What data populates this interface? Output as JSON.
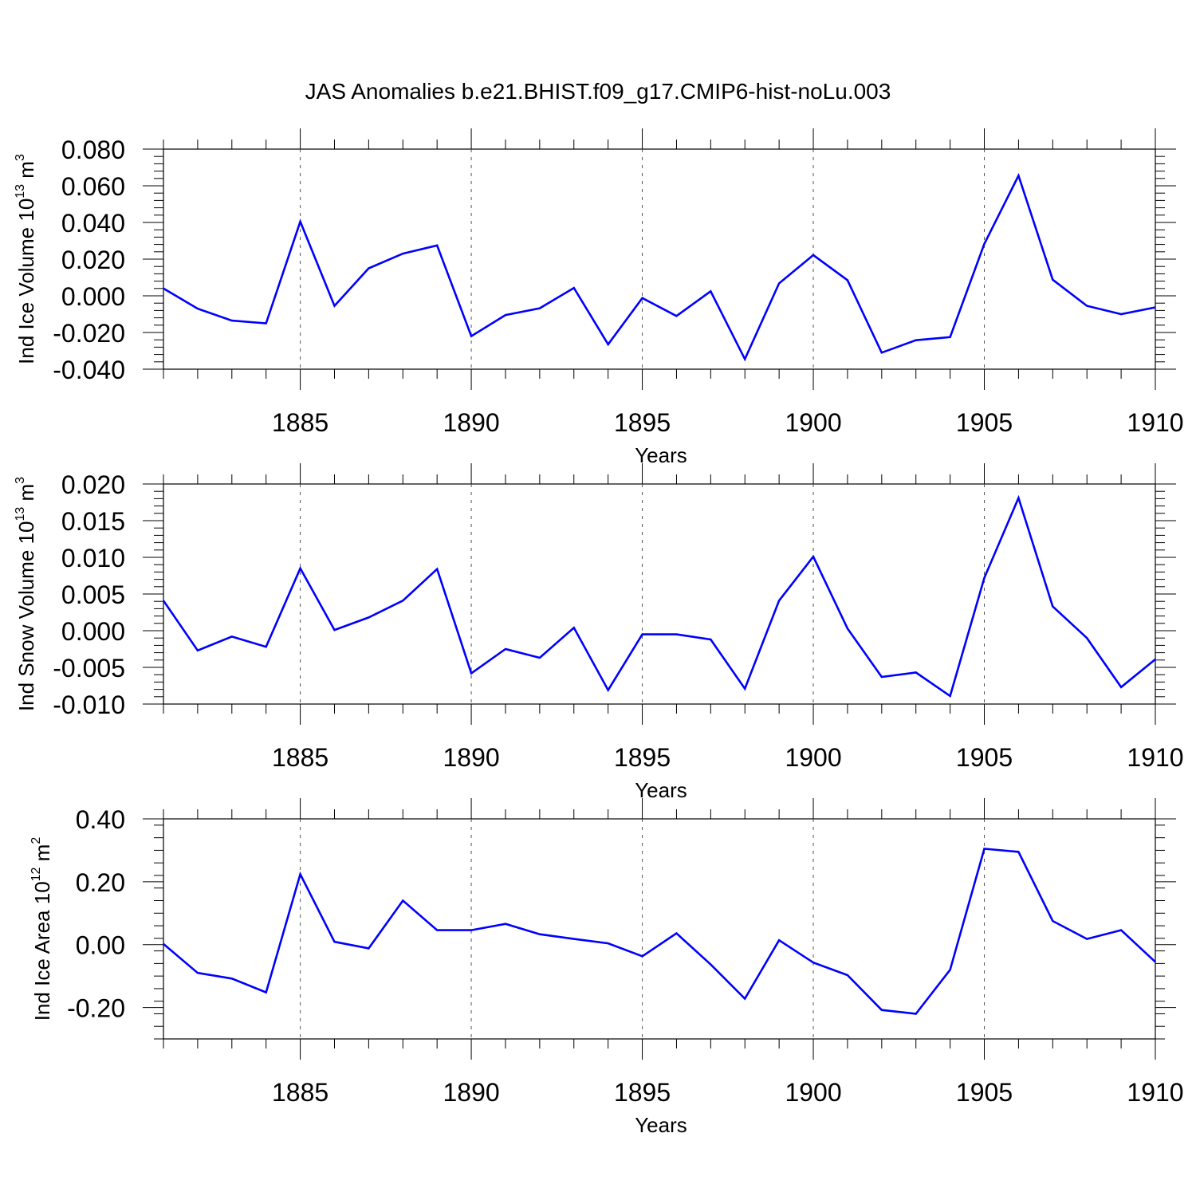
{
  "chart_title": "JAS Anomalies b.e21.BHIST.f09_g17.CMIP6-hist-noLu.003",
  "chart_data": [
    {
      "type": "line",
      "ylabel": {
        "text": "Ind Ice Volume 10",
        "exponent": "13",
        "unit": " m",
        "unit_exponent": "3"
      },
      "xlabel": "Years",
      "xlim": [
        1881,
        1910
      ],
      "ylim": [
        -0.04,
        0.08
      ],
      "x_major_ticks": [
        1885,
        1890,
        1895,
        1900,
        1905,
        1910
      ],
      "y_ticks": [
        -0.04,
        -0.02,
        0.0,
        0.02,
        0.04,
        0.06,
        0.08
      ],
      "y_tick_labels": [
        "-0.040",
        "-0.020",
        "0.000",
        "0.020",
        "0.040",
        "0.060",
        "0.080"
      ],
      "grid": "dashed vertical lines at major x ticks",
      "series_color": "#0000ff",
      "x": [
        1881,
        1882,
        1883,
        1884,
        1885,
        1886,
        1887,
        1888,
        1889,
        1890,
        1891,
        1892,
        1893,
        1894,
        1895,
        1896,
        1897,
        1898,
        1899,
        1900,
        1901,
        1902,
        1903,
        1904,
        1905,
        1906,
        1907,
        1908,
        1909,
        1910
      ],
      "values": [
        0.004,
        -0.007,
        -0.0135,
        -0.015,
        0.0405,
        -0.0055,
        0.015,
        0.023,
        0.0275,
        -0.022,
        -0.0105,
        -0.0068,
        0.0043,
        -0.0265,
        -0.0012,
        -0.011,
        0.0025,
        -0.0345,
        0.0068,
        0.0222,
        0.0085,
        -0.031,
        -0.0242,
        -0.0225,
        0.0283,
        0.0655,
        0.0088,
        -0.0055,
        -0.01,
        -0.0063
      ]
    },
    {
      "type": "line",
      "ylabel": {
        "text": "Ind Snow Volume 10",
        "exponent": "13",
        "unit": " m",
        "unit_exponent": "3"
      },
      "xlabel": "Years",
      "xlim": [
        1881,
        1910
      ],
      "ylim": [
        -0.01,
        0.02
      ],
      "x_major_ticks": [
        1885,
        1890,
        1895,
        1900,
        1905,
        1910
      ],
      "y_ticks": [
        -0.01,
        -0.005,
        0.0,
        0.005,
        0.01,
        0.015,
        0.02
      ],
      "y_tick_labels": [
        "-0.010",
        "-0.005",
        "0.000",
        "0.005",
        "0.010",
        "0.015",
        "0.020"
      ],
      "grid": "dashed vertical lines at major x ticks",
      "series_color": "#0000ff",
      "x": [
        1881,
        1882,
        1883,
        1884,
        1885,
        1886,
        1887,
        1888,
        1889,
        1890,
        1891,
        1892,
        1893,
        1894,
        1895,
        1896,
        1897,
        1898,
        1899,
        1900,
        1901,
        1902,
        1903,
        1904,
        1905,
        1906,
        1907,
        1908,
        1909,
        1910
      ],
      "values": [
        0.0041,
        -0.0027,
        -0.0008,
        -0.0022,
        0.0085,
        0.0001,
        0.0018,
        0.0041,
        0.0084,
        -0.0058,
        -0.0025,
        -0.0037,
        0.0004,
        -0.0081,
        -0.0005,
        -0.0005,
        -0.0012,
        -0.0079,
        0.0041,
        0.0101,
        0.0003,
        -0.0063,
        -0.0057,
        -0.0089,
        0.0072,
        0.0181,
        0.0033,
        -0.001,
        -0.0077,
        -0.0039
      ]
    },
    {
      "type": "line",
      "ylabel": {
        "text": "Ind Ice Area 10",
        "exponent": "12",
        "unit": " m",
        "unit_exponent": "2"
      },
      "xlabel": "Years",
      "xlim": [
        1881,
        1910
      ],
      "ylim": [
        -0.3,
        0.4
      ],
      "x_major_ticks": [
        1885,
        1890,
        1895,
        1900,
        1905,
        1910
      ],
      "y_ticks": [
        -0.2,
        0.0,
        0.2,
        0.4
      ],
      "y_tick_labels": [
        "-0.20",
        "0.00",
        "0.20",
        "0.40"
      ],
      "grid": "dashed vertical lines at major x ticks",
      "series_color": "#0000ff",
      "x": [
        1881,
        1882,
        1883,
        1884,
        1885,
        1886,
        1887,
        1888,
        1889,
        1890,
        1891,
        1892,
        1893,
        1894,
        1895,
        1896,
        1897,
        1898,
        1899,
        1900,
        1901,
        1902,
        1903,
        1904,
        1905,
        1906,
        1907,
        1908,
        1909,
        1910
      ],
      "values": [
        0.002,
        -0.09,
        -0.108,
        -0.152,
        0.224,
        0.009,
        -0.012,
        0.14,
        0.046,
        0.046,
        0.066,
        0.033,
        0.018,
        0.004,
        -0.037,
        0.036,
        -0.063,
        -0.172,
        0.014,
        -0.057,
        -0.097,
        -0.208,
        -0.22,
        -0.08,
        0.305,
        0.295,
        0.075,
        0.018,
        0.046,
        -0.055
      ]
    }
  ]
}
